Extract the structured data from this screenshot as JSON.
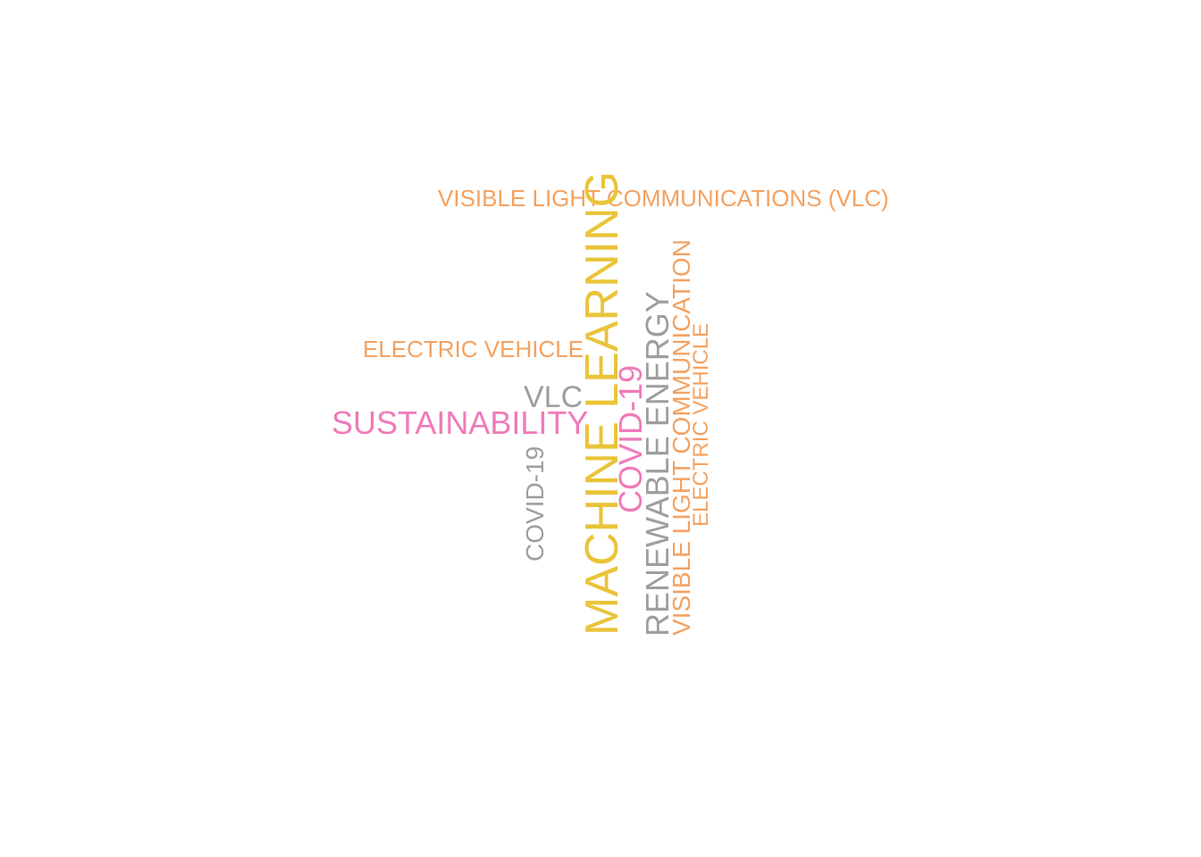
{
  "colors": {
    "orange": "#F4A261",
    "gray": "#9E9E9E",
    "pink": "#F07AB8",
    "gold": "#E9C43A"
  },
  "words": [
    {
      "text": "VISIBLE LIGHT COMMUNICATIONS (VLC)",
      "color": "orange",
      "orientation": "horizontal"
    },
    {
      "text": "ELECTRIC VEHICLE",
      "color": "orange",
      "orientation": "horizontal"
    },
    {
      "text": "VLC",
      "color": "gray",
      "orientation": "horizontal"
    },
    {
      "text": "SUSTAINABILITY",
      "color": "pink",
      "orientation": "horizontal"
    },
    {
      "text": "COVID-19",
      "color": "gray",
      "orientation": "vertical"
    },
    {
      "text": "MACHINE LEARNING",
      "color": "gold",
      "orientation": "vertical"
    },
    {
      "text": "COVID-19",
      "color": "pink",
      "orientation": "vertical"
    },
    {
      "text": "RENEWABLE ENERGY",
      "color": "gray",
      "orientation": "vertical"
    },
    {
      "text": "VISIBLE LIGHT COMMUNICATION",
      "color": "orange",
      "orientation": "vertical"
    },
    {
      "text": "ELECTRIC VEHICLE",
      "color": "orange",
      "orientation": "vertical"
    }
  ]
}
